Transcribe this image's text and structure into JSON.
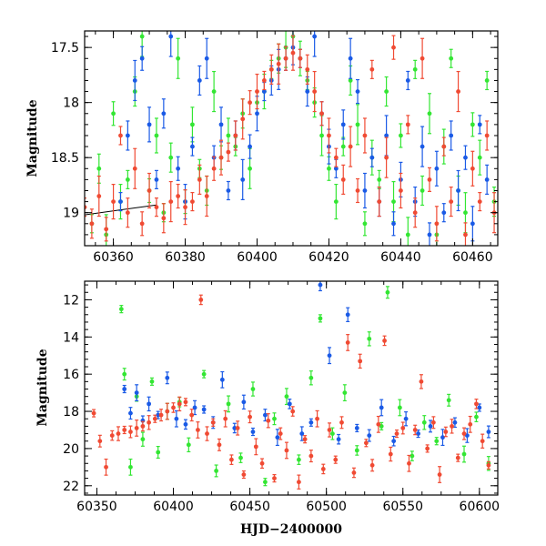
{
  "chart_data": [
    {
      "type": "scatter",
      "title": "",
      "xlabel": "",
      "ylabel": "Magnitude",
      "xlim": [
        60352,
        60467
      ],
      "ylim": [
        19.3,
        17.35
      ],
      "y_inverted": true,
      "x_ticks": [
        60360,
        60380,
        60400,
        60420,
        60440,
        60460
      ],
      "y_ticks": [
        17.5,
        18,
        18.5,
        19
      ],
      "y_tick_labels": [
        "17.5",
        "18",
        "18.5",
        "19"
      ],
      "x_tick_labels": [
        "60360",
        "60380",
        "60400",
        "60420",
        "60440",
        "60460"
      ],
      "series_colors": {
        "green": "#33e633",
        "blue": "#1a5ae6",
        "red": "#f04a33"
      },
      "line_segment": {
        "x": [
          60352,
          60372
        ],
        "y": [
          19.02,
          18.93
        ]
      },
      "series": [
        {
          "color": "green",
          "x": [
            60354,
            60356,
            60358,
            60360,
            60362,
            60364,
            60366,
            60368,
            60370,
            60372,
            60374,
            60376,
            60378,
            60380,
            60382,
            60384,
            60386,
            60388,
            60390,
            60392,
            60394,
            60396,
            60398,
            60400,
            60402,
            60404,
            60406,
            60408,
            60410,
            60412,
            60414,
            60416,
            60418,
            60420,
            60422,
            60424,
            60426,
            60428,
            60430,
            60432,
            60434,
            60436,
            60438,
            60440,
            60442,
            60444,
            60446,
            60448,
            60450,
            60452,
            60454,
            60456,
            60458,
            60460,
            60462,
            60464,
            60466
          ],
          "y": [
            19.1,
            18.6,
            19.2,
            18.1,
            18.9,
            18.7,
            17.9,
            17.4,
            18.8,
            18.3,
            19.0,
            18.5,
            17.6,
            18.9,
            18.2,
            18.6,
            18.8,
            17.9,
            18.5,
            18.3,
            18.4,
            18.1,
            18.6,
            18.0,
            17.9,
            17.7,
            17.6,
            17.5,
            17.4,
            17.6,
            17.8,
            18.0,
            18.3,
            18.6,
            18.9,
            18.4,
            17.8,
            18.2,
            19.1,
            18.5,
            18.7,
            17.9,
            18.9,
            18.3,
            19.2,
            17.7,
            18.8,
            18.1,
            19.2,
            18.4,
            17.6,
            18.8,
            19.0,
            18.2,
            18.5,
            17.8,
            18.9
          ]
        },
        {
          "color": "blue",
          "x": [
            60362,
            60364,
            60366,
            60368,
            60370,
            60372,
            60374,
            60376,
            60378,
            60380,
            60382,
            60384,
            60386,
            60388,
            60390,
            60392,
            60394,
            60396,
            60398,
            60400,
            60402,
            60404,
            60406,
            60408,
            60410,
            60412,
            60414,
            60416,
            60418,
            60420,
            60422,
            60424,
            60426,
            60428,
            60430,
            60432,
            60434,
            60436,
            60438,
            60440,
            60442,
            60444,
            60446,
            60448,
            60450,
            60452,
            60454,
            60456,
            60458,
            60460,
            60462,
            60464
          ],
          "y": [
            18.9,
            18.3,
            17.8,
            17.6,
            18.2,
            18.7,
            18.1,
            17.4,
            18.6,
            18.9,
            18.4,
            17.8,
            17.6,
            18.5,
            18.2,
            18.8,
            18.3,
            18.7,
            18.4,
            18.1,
            17.9,
            17.8,
            17.7,
            17.6,
            17.5,
            17.6,
            17.9,
            17.4,
            18.1,
            18.4,
            18.6,
            18.2,
            17.6,
            17.9,
            18.8,
            18.5,
            18.9,
            18.3,
            19.1,
            18.7,
            17.8,
            18.9,
            18.4,
            19.2,
            18.6,
            19.0,
            18.3,
            18.8,
            18.5,
            19.1,
            18.2,
            18.7
          ]
        },
        {
          "color": "red",
          "x": [
            60352,
            60354,
            60356,
            60358,
            60360,
            60362,
            60364,
            60366,
            60368,
            60370,
            60372,
            60374,
            60376,
            60378,
            60380,
            60382,
            60384,
            60386,
            60388,
            60390,
            60392,
            60394,
            60396,
            60398,
            60400,
            60402,
            60404,
            60406,
            60408,
            60410,
            60412,
            60414,
            60416,
            60418,
            60420,
            60422,
            60424,
            60426,
            60428,
            60430,
            60432,
            60434,
            60436,
            60438,
            60440,
            60442,
            60444,
            60446,
            60448,
            60450,
            60452,
            60454,
            60456,
            60458,
            60460,
            60462,
            60464,
            60466
          ],
          "y": [
            18.95,
            19.1,
            18.85,
            19.15,
            18.9,
            18.3,
            19.0,
            18.6,
            19.1,
            18.8,
            18.95,
            19.05,
            18.9,
            18.85,
            18.95,
            18.9,
            18.7,
            18.85,
            18.6,
            18.5,
            18.45,
            18.3,
            18.15,
            18.0,
            17.9,
            17.8,
            17.7,
            17.65,
            17.6,
            17.55,
            17.6,
            17.7,
            17.9,
            18.1,
            18.3,
            18.5,
            18.7,
            18.4,
            18.8,
            18.3,
            17.7,
            18.9,
            18.5,
            17.5,
            18.8,
            18.2,
            19.0,
            17.6,
            18.7,
            19.1,
            18.4,
            18.9,
            17.9,
            19.2,
            18.6,
            18.9,
            18.3,
            19.0
          ]
        }
      ]
    },
    {
      "type": "scatter",
      "title": "",
      "xlabel": "HJD−2400000",
      "ylabel": "Magnitude",
      "xlim": [
        60342,
        60612
      ],
      "ylim": [
        22.5,
        11
      ],
      "y_inverted": true,
      "x_ticks": [
        60350,
        60400,
        60450,
        60500,
        60550,
        60600
      ],
      "y_ticks": [
        12,
        14,
        16,
        18,
        20,
        22
      ],
      "x_tick_labels": [
        "60350",
        "60400",
        "60450",
        "60500",
        "60550",
        "60600"
      ],
      "y_tick_labels": [
        "12",
        "14",
        "16",
        "18",
        "20",
        "22"
      ],
      "series_colors": {
        "green": "#33e633",
        "blue": "#1a5ae6",
        "red": "#f04a33"
      },
      "series": [
        {
          "color": "green",
          "x": [
            60366,
            60368,
            60372,
            60376,
            60380,
            60386,
            60390,
            60396,
            60404,
            60410,
            60420,
            60428,
            60436,
            60444,
            60452,
            60460,
            60466,
            60474,
            60482,
            60490,
            60496,
            60504,
            60512,
            60520,
            60528,
            60536,
            60540,
            60548,
            60556,
            60564,
            60572,
            60580,
            60590,
            60598,
            60606
          ],
          "y": [
            12.5,
            16.0,
            21.0,
            17.2,
            19.5,
            16.4,
            20.2,
            18.0,
            17.5,
            19.8,
            16.0,
            21.2,
            17.6,
            20.5,
            16.8,
            21.8,
            18.4,
            17.2,
            20.6,
            16.2,
            13.0,
            19.2,
            17.0,
            20.1,
            14.1,
            18.8,
            11.6,
            17.8,
            20.4,
            18.6,
            19.6,
            17.4,
            20.3,
            18.3,
            20.8
          ]
        },
        {
          "color": "blue",
          "x": [
            60368,
            60372,
            60376,
            60380,
            60384,
            60390,
            60396,
            60402,
            60408,
            60414,
            60420,
            60426,
            60432,
            60440,
            60446,
            60452,
            60460,
            60468,
            60476,
            60484,
            60490,
            60496,
            60502,
            60508,
            60514,
            60520,
            60528,
            60536,
            60544,
            60552,
            60560,
            60568,
            60576,
            60584,
            60592,
            60600,
            60606
          ],
          "y": [
            16.8,
            18.1,
            17.0,
            18.5,
            17.6,
            18.2,
            16.2,
            18.4,
            18.7,
            17.8,
            17.9,
            18.6,
            16.3,
            18.9,
            17.5,
            19.1,
            18.2,
            19.4,
            17.6,
            19.2,
            18.6,
            11.2,
            15.0,
            19.5,
            12.8,
            18.9,
            19.3,
            17.8,
            19.6,
            18.4,
            19.2,
            18.8,
            19.4,
            18.6,
            19.3,
            17.8,
            19.1
          ]
        },
        {
          "color": "red",
          "x": [
            60348,
            60352,
            60356,
            60360,
            60364,
            60368,
            60372,
            60376,
            60380,
            60384,
            60388,
            60392,
            60396,
            60400,
            60404,
            60408,
            60412,
            60416,
            60418,
            60422,
            60426,
            60430,
            60434,
            60438,
            60442,
            60446,
            60450,
            60454,
            60458,
            60462,
            60466,
            60470,
            60474,
            60478,
            60482,
            60486,
            60490,
            60494,
            60498,
            60502,
            60506,
            60510,
            60514,
            60518,
            60522,
            60526,
            60530,
            60534,
            60538,
            60542,
            60546,
            60550,
            60554,
            60558,
            60562,
            60566,
            60570,
            60574,
            60578,
            60582,
            60586,
            60590,
            60594,
            60598,
            60602,
            60606
          ],
          "y": [
            18.1,
            19.6,
            21.0,
            19.3,
            19.2,
            19.0,
            19.1,
            18.9,
            18.8,
            18.6,
            18.4,
            18.2,
            18.0,
            17.8,
            17.6,
            17.5,
            18.2,
            19.0,
            12.0,
            19.2,
            18.6,
            19.8,
            18.4,
            20.6,
            18.9,
            21.4,
            18.3,
            19.9,
            20.8,
            18.5,
            21.6,
            19.2,
            20.1,
            18.0,
            21.8,
            19.5,
            20.4,
            18.4,
            21.1,
            19.0,
            20.6,
            18.6,
            14.3,
            21.3,
            15.3,
            19.7,
            20.9,
            18.7,
            14.2,
            20.3,
            19.2,
            18.9,
            20.8,
            19.0,
            16.4,
            20.0,
            18.6,
            21.4,
            19.1,
            18.8,
            20.5,
            19.2,
            18.7,
            17.6,
            19.6,
            20.9
          ]
        }
      ]
    }
  ]
}
